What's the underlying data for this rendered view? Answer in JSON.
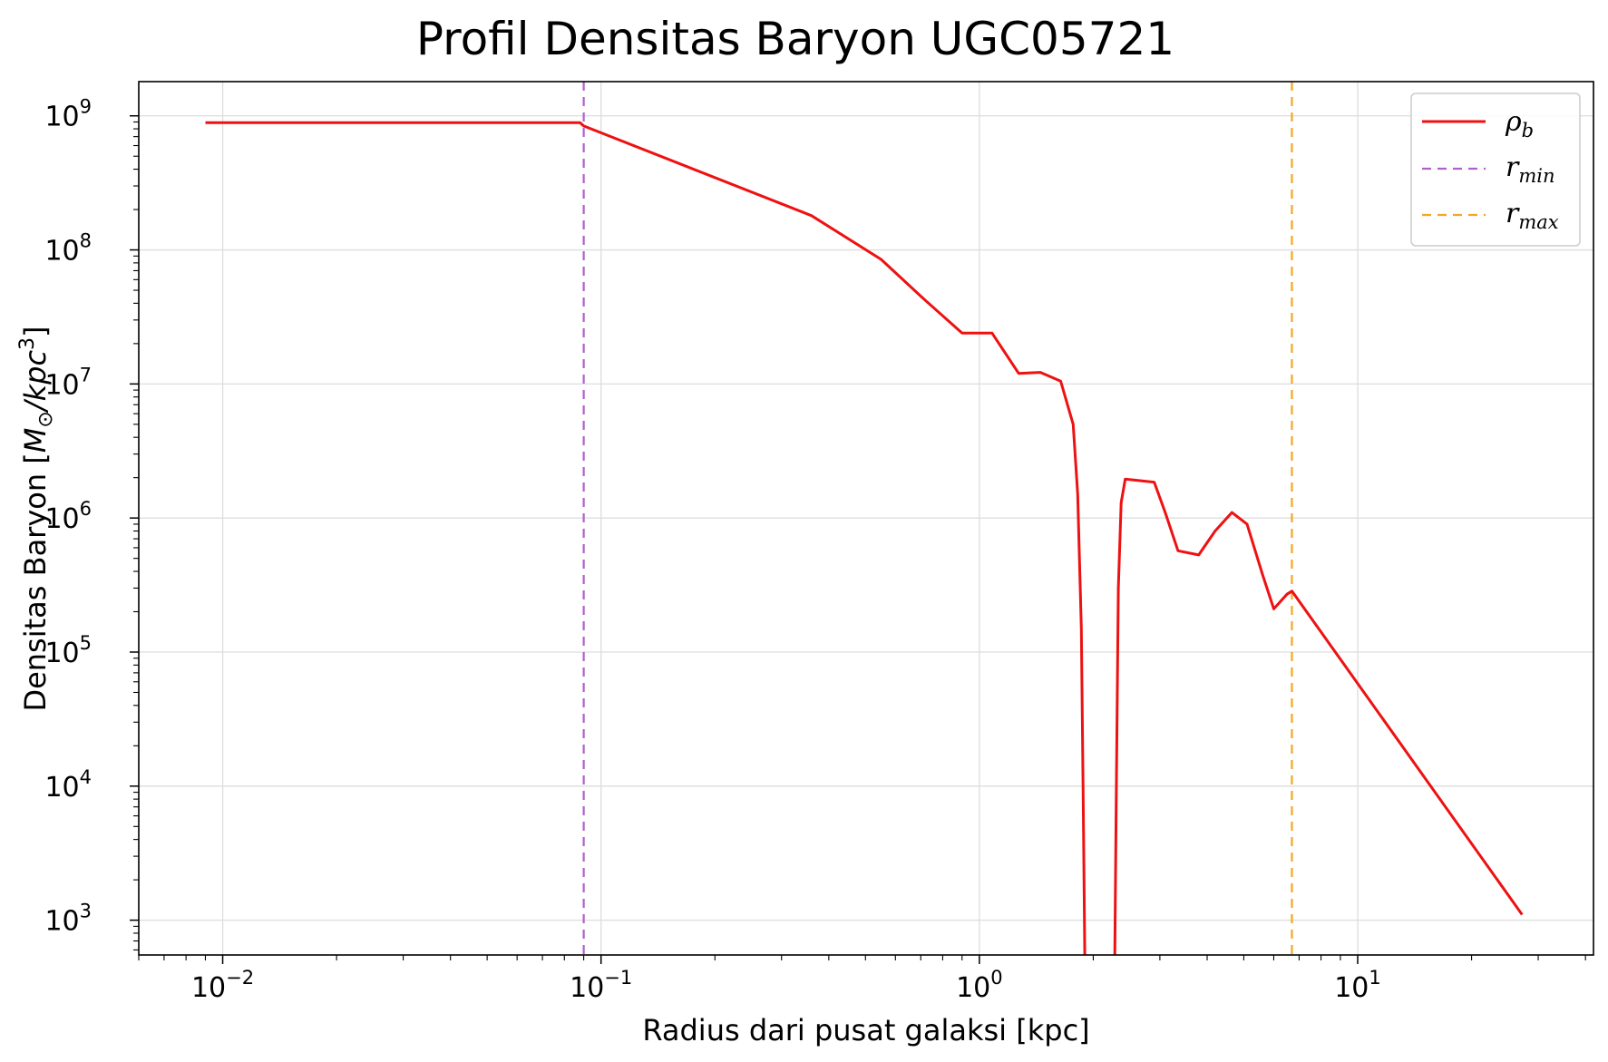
{
  "chart_data": {
    "type": "line",
    "title": "Profil Densitas Baryon UGC05721",
    "xlabel": "Radius dari pusat galaksi [kpc]",
    "ylabel": {
      "text": "Densitas Baryon [",
      "unit_m": "M",
      "unit_sun_sub": "⊙",
      "unit_rest": "/kpc",
      "unit_sup": "3",
      "close": "]"
    },
    "xscale": "log",
    "yscale": "log",
    "xlim": [
      0.006,
      42
    ],
    "ylim": [
      550,
      1800000000
    ],
    "grid": true,
    "legend_position": "top-right",
    "x_ticks": [
      {
        "value": 0.01,
        "base": "10",
        "exp": "−2"
      },
      {
        "value": 0.1,
        "base": "10",
        "exp": "−1"
      },
      {
        "value": 1,
        "base": "10",
        "exp": "0"
      },
      {
        "value": 10,
        "base": "10",
        "exp": "1"
      }
    ],
    "y_ticks": [
      {
        "value": 1000,
        "base": "10",
        "exp": "3"
      },
      {
        "value": 10000,
        "base": "10",
        "exp": "4"
      },
      {
        "value": 100000,
        "base": "10",
        "exp": "5"
      },
      {
        "value": 1000000,
        "base": "10",
        "exp": "6"
      },
      {
        "value": 10000000,
        "base": "10",
        "exp": "7"
      },
      {
        "value": 100000000,
        "base": "10",
        "exp": "8"
      },
      {
        "value": 1000000000,
        "base": "10",
        "exp": "9"
      }
    ],
    "series": [
      {
        "label": "ρ",
        "label_sub": "b",
        "color": "#ee1111",
        "segments": [
          [
            [
              0.009,
              890000000
            ],
            [
              0.088,
              890000000
            ],
            [
              0.09,
              840000000
            ],
            [
              0.36,
              180000000
            ],
            [
              0.55,
              85000000
            ],
            [
              0.72,
              42000000
            ],
            [
              0.9,
              24000000
            ],
            [
              1.08,
              24000000
            ],
            [
              1.27,
              12000000
            ],
            [
              1.45,
              12200000
            ],
            [
              1.64,
              10500000
            ],
            [
              1.77,
              5000000
            ],
            [
              1.82,
              1500000
            ],
            [
              1.86,
              150000
            ],
            [
              1.88,
              10000
            ],
            [
              1.9,
              550
            ]
          ],
          [
            [
              2.28,
              550
            ],
            [
              2.3,
              8000
            ],
            [
              2.33,
              300000
            ],
            [
              2.37,
              1300000
            ],
            [
              2.43,
              1950000
            ],
            [
              2.9,
              1850000
            ],
            [
              3.1,
              1100000
            ],
            [
              3.35,
              570000
            ],
            [
              3.8,
              530000
            ],
            [
              4.2,
              800000
            ],
            [
              4.65,
              1100000
            ],
            [
              5.1,
              900000
            ],
            [
              5.6,
              380000
            ],
            [
              6.0,
              210000
            ],
            [
              6.5,
              270000
            ],
            [
              6.7,
              285000
            ],
            [
              27.2,
              1100
            ]
          ]
        ]
      }
    ],
    "vlines": [
      {
        "x": 0.09,
        "label": "r",
        "label_sub": "min",
        "color": "#b060cc",
        "style": "dashed"
      },
      {
        "x": 6.7,
        "label": "r",
        "label_sub": "max",
        "color": "#f5a623",
        "style": "dashed"
      }
    ]
  }
}
